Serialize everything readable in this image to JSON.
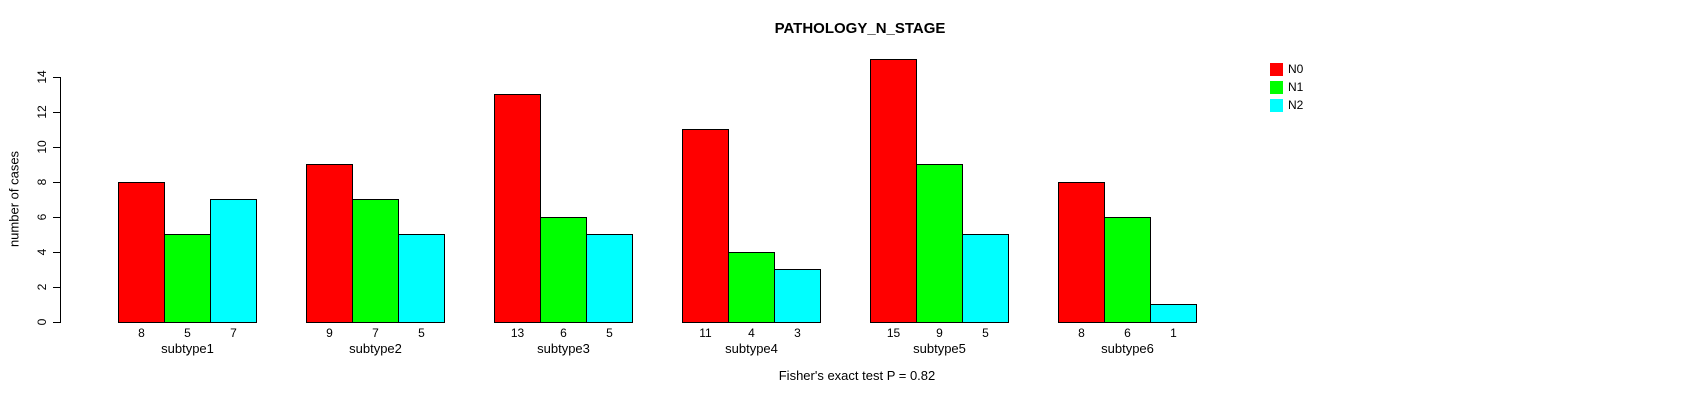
{
  "title": "PATHOLOGY_N_STAGE",
  "ylabel": "number of cases",
  "footnote": "Fisher's exact test P = 0.82",
  "legend": {
    "position": "topright",
    "items": [
      {
        "label": "N0",
        "color": "#FF0000"
      },
      {
        "label": "N1",
        "color": "#00FF00"
      },
      {
        "label": "N2",
        "color": "#00FFFF"
      }
    ]
  },
  "chart_data": {
    "type": "bar",
    "title": "PATHOLOGY_N_STAGE",
    "xlabel": "",
    "ylabel": "number of cases",
    "categories": [
      "subtype1",
      "subtype2",
      "subtype3",
      "subtype4",
      "subtype5",
      "subtype6"
    ],
    "series": [
      {
        "name": "N0",
        "color": "#FF0000",
        "values": [
          8,
          9,
          13,
          11,
          15,
          8
        ]
      },
      {
        "name": "N1",
        "color": "#00FF00",
        "values": [
          5,
          7,
          6,
          4,
          9,
          6
        ]
      },
      {
        "name": "N2",
        "color": "#00FFFF",
        "values": [
          7,
          5,
          5,
          3,
          5,
          1
        ]
      }
    ],
    "y_ticks": [
      0,
      2,
      4,
      6,
      8,
      10,
      12,
      14
    ],
    "ylim": [
      0,
      15
    ],
    "grid": false,
    "bar_value_labels": true,
    "legend_position": "topright",
    "annotation": "Fisher's exact test P = 0.82"
  }
}
